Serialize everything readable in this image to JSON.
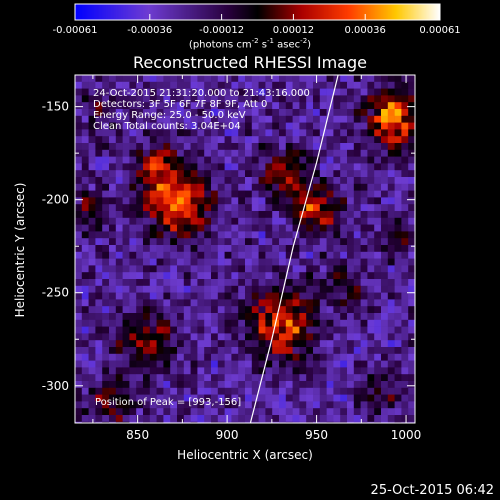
{
  "chart_data": {
    "type": "heatmap",
    "title": "Reconstructed RHESSI Image",
    "xlabel": "Heliocentric X (arcsec)",
    "ylabel": "Heliocentric Y (arcsec)",
    "xlim": [
      815,
      1005
    ],
    "ylim": [
      -320,
      -133
    ],
    "xticks": [
      850,
      900,
      950,
      1000
    ],
    "yticks": [
      -150,
      -200,
      -250,
      -300
    ],
    "colorbar": {
      "range": [
        -0.00061,
        0.00061
      ],
      "ticks": [
        "-0.00061",
        "-0.00036",
        "-0.00012",
        "0.00012",
        "0.00036",
        "0.00061"
      ],
      "unit_base": "(photons cm",
      "unit_exps": [
        "-2",
        "-1",
        "-2"
      ],
      "unit_parts": [
        " s",
        " asec",
        ")"
      ]
    },
    "annotations": [
      "24-Oct-2015 21:31:20.000 to 21:43:16.000",
      "Detectors: 3F 5F 6F 7F 8F 9F, Att 0",
      "Energy Range: 25.0 - 50.0 keV",
      "Clean     Total counts: 3.04E+04"
    ],
    "peak_label": "Position of Peak = [993,-156]",
    "peak": [
      993,
      -156
    ],
    "limb": [
      [
        913,
        -320
      ],
      [
        925,
        -275
      ],
      [
        937,
        -225
      ],
      [
        950,
        -180
      ],
      [
        962,
        -133
      ]
    ],
    "sources": [
      {
        "x": 872,
        "y": -200,
        "amp": 0.00058,
        "r": 13
      },
      {
        "x": 860,
        "y": -180,
        "amp": 0.0003,
        "r": 8
      },
      {
        "x": 932,
        "y": -185,
        "amp": 0.0004,
        "r": 9
      },
      {
        "x": 950,
        "y": -205,
        "amp": 0.00048,
        "r": 9
      },
      {
        "x": 930,
        "y": -265,
        "amp": 0.00052,
        "r": 13
      },
      {
        "x": 965,
        "y": -245,
        "amp": 0.00022,
        "r": 8
      },
      {
        "x": 855,
        "y": -275,
        "amp": 0.00035,
        "r": 11
      },
      {
        "x": 835,
        "y": -305,
        "amp": 0.0003,
        "r": 9
      },
      {
        "x": 825,
        "y": -205,
        "amp": 0.00025,
        "r": 7
      },
      {
        "x": 993,
        "y": -156,
        "amp": 0.00061,
        "r": 10
      },
      {
        "x": 995,
        "y": -220,
        "amp": 0.0002,
        "r": 7
      },
      {
        "x": 985,
        "y": -300,
        "amp": 0.00022,
        "r": 8
      },
      {
        "x": 830,
        "y": -150,
        "amp": 0.0002,
        "r": 7
      }
    ]
  },
  "footer": "25-Oct-2015 06:42"
}
